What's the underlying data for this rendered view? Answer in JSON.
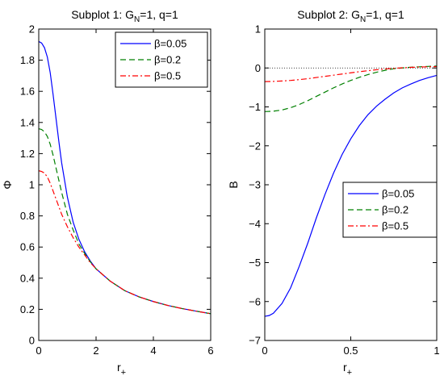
{
  "chart_data": [
    {
      "type": "line",
      "title_main": "Subplot 1: G",
      "title_sub": "N",
      "title_rest": "=1, q=1",
      "xlabel_main": "r",
      "xlabel_sub": "+",
      "ylabel": "Φ",
      "xlim": [
        0,
        6
      ],
      "ylim": [
        0,
        2
      ],
      "xticks": [
        0,
        2,
        4,
        6
      ],
      "xtick_labels": [
        "0",
        "2",
        "4",
        "6"
      ],
      "yticks": [
        0,
        0.2,
        0.4,
        0.6,
        0.8,
        1,
        1.2,
        1.4,
        1.6,
        1.8,
        2
      ],
      "ytick_labels": [
        "0",
        "0.2",
        "0.4",
        "0.6",
        "0.8",
        "1",
        "1.2",
        "1.4",
        "1.6",
        "1.8",
        "2"
      ],
      "legend_position": "top-right",
      "reference_line": {
        "y": 0,
        "style": "dotted"
      },
      "series": [
        {
          "name": "β=0.05",
          "color": "#0000ff",
          "dash": "solid",
          "x": [
            0,
            0.1,
            0.2,
            0.3,
            0.4,
            0.5,
            0.6,
            0.7,
            0.8,
            1.0,
            1.2,
            1.4,
            1.6,
            1.8,
            2.0,
            2.5,
            3,
            3.5,
            4,
            4.5,
            5,
            5.5,
            6
          ],
          "y": [
            1.92,
            1.91,
            1.88,
            1.82,
            1.72,
            1.58,
            1.43,
            1.28,
            1.14,
            0.92,
            0.76,
            0.65,
            0.57,
            0.51,
            0.46,
            0.38,
            0.32,
            0.28,
            0.25,
            0.225,
            0.205,
            0.188,
            0.172
          ]
        },
        {
          "name": "β=0.2",
          "color": "#008000",
          "dash": "dashed",
          "x": [
            0,
            0.1,
            0.2,
            0.3,
            0.4,
            0.5,
            0.6,
            0.7,
            0.8,
            1.0,
            1.2,
            1.4,
            1.6,
            1.8,
            2.0,
            2.5,
            3,
            3.5,
            4,
            4.5,
            5,
            5.5,
            6
          ],
          "y": [
            1.36,
            1.355,
            1.34,
            1.31,
            1.26,
            1.19,
            1.11,
            1.03,
            0.95,
            0.81,
            0.71,
            0.62,
            0.56,
            0.505,
            0.46,
            0.38,
            0.32,
            0.28,
            0.25,
            0.225,
            0.205,
            0.188,
            0.172
          ]
        },
        {
          "name": "β=0.5",
          "color": "#ff0000",
          "dash": "dashdot",
          "x": [
            0,
            0.1,
            0.2,
            0.3,
            0.4,
            0.5,
            0.6,
            0.7,
            0.8,
            1.0,
            1.2,
            1.4,
            1.6,
            1.8,
            2.0,
            2.5,
            3,
            3.5,
            4,
            4.5,
            5,
            5.5,
            6
          ],
          "y": [
            1.09,
            1.085,
            1.075,
            1.05,
            1.01,
            0.96,
            0.91,
            0.86,
            0.81,
            0.73,
            0.66,
            0.6,
            0.55,
            0.5,
            0.46,
            0.38,
            0.32,
            0.28,
            0.25,
            0.225,
            0.205,
            0.188,
            0.172
          ]
        }
      ]
    },
    {
      "type": "line",
      "title_main": "Subplot 2: G",
      "title_sub": "N",
      "title_rest": "=1, q=1",
      "xlabel_main": "r",
      "xlabel_sub": "+",
      "ylabel": "B",
      "xlim": [
        0,
        1
      ],
      "ylim": [
        -7,
        1
      ],
      "xticks": [
        0,
        0.5,
        1
      ],
      "xtick_labels": [
        "0",
        "0.5",
        "1"
      ],
      "yticks": [
        -7,
        -6,
        -5,
        -4,
        -3,
        -2,
        -1,
        0,
        1
      ],
      "ytick_labels": [
        "−7",
        "−6",
        "−5",
        "−4",
        "−3",
        "−2",
        "−1",
        "0",
        "1"
      ],
      "legend_position": "middle-right",
      "reference_line": {
        "y": 0,
        "style": "dotted"
      },
      "series": [
        {
          "name": "β=0.05",
          "color": "#0000ff",
          "dash": "solid",
          "x": [
            0,
            0.025,
            0.05,
            0.1,
            0.15,
            0.2,
            0.25,
            0.3,
            0.35,
            0.4,
            0.45,
            0.5,
            0.55,
            0.6,
            0.65,
            0.7,
            0.75,
            0.8,
            0.85,
            0.9,
            0.95,
            1.0
          ],
          "y": [
            -6.38,
            -6.36,
            -6.3,
            -6.05,
            -5.65,
            -5.1,
            -4.5,
            -3.85,
            -3.25,
            -2.7,
            -2.22,
            -1.82,
            -1.48,
            -1.2,
            -0.98,
            -0.8,
            -0.64,
            -0.51,
            -0.41,
            -0.32,
            -0.25,
            -0.19
          ]
        },
        {
          "name": "β=0.2",
          "color": "#008000",
          "dash": "dashed",
          "x": [
            0,
            0.05,
            0.1,
            0.15,
            0.2,
            0.25,
            0.3,
            0.35,
            0.4,
            0.45,
            0.5,
            0.55,
            0.6,
            0.65,
            0.7,
            0.75,
            0.8,
            0.85,
            0.9,
            0.95,
            1.0
          ],
          "y": [
            -1.12,
            -1.11,
            -1.08,
            -1.02,
            -0.94,
            -0.84,
            -0.73,
            -0.62,
            -0.51,
            -0.41,
            -0.32,
            -0.24,
            -0.17,
            -0.11,
            -0.06,
            -0.02,
            0.0,
            0.02,
            0.03,
            0.04,
            0.05
          ]
        },
        {
          "name": "β=0.5",
          "color": "#ff0000",
          "dash": "dashdot",
          "x": [
            0,
            0.05,
            0.1,
            0.15,
            0.2,
            0.25,
            0.3,
            0.35,
            0.4,
            0.45,
            0.5,
            0.55,
            0.6,
            0.65,
            0.7,
            0.75,
            0.8,
            0.85,
            0.9,
            0.95,
            1.0
          ],
          "y": [
            -0.35,
            -0.345,
            -0.335,
            -0.32,
            -0.3,
            -0.275,
            -0.245,
            -0.215,
            -0.185,
            -0.155,
            -0.125,
            -0.095,
            -0.07,
            -0.045,
            -0.025,
            -0.01,
            0.005,
            0.015,
            0.025,
            0.03,
            0.035
          ]
        }
      ]
    }
  ]
}
